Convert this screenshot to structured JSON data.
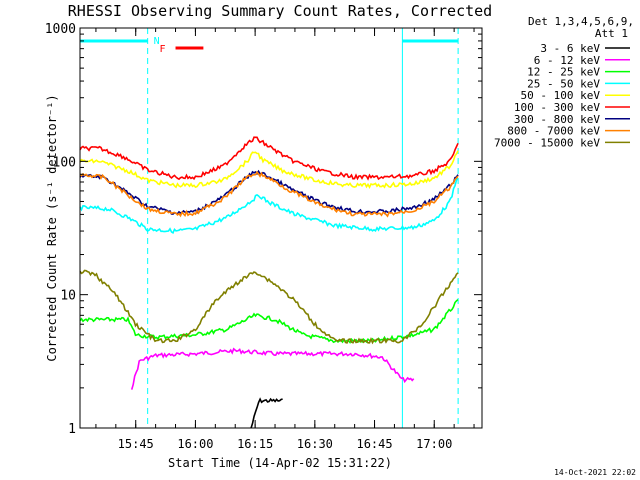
{
  "chart_data": {
    "type": "line",
    "title": "RHESSI Observing Summary Count Rates, Corrected",
    "xlabel": "Start Time (14-Apr-02 15:31:22)",
    "ylabel": "Corrected Count Rate (s⁻¹ detector⁻¹)",
    "ylog": true,
    "ylim": [
      1,
      1000
    ],
    "xlim": [
      "15:31",
      "17:12"
    ],
    "x_ticks": [
      "15:45",
      "16:00",
      "16:15",
      "16:30",
      "16:45",
      "17:00"
    ],
    "y_ticks": [
      "1",
      "10",
      "100",
      "1000"
    ],
    "detectors": "Det 1,3,4,5,6,9,",
    "attenuator": "Att 1",
    "footer_date": "14-Oct-2021 22:02",
    "markers": {
      "night_label": "N",
      "flare_label": "F",
      "vlines": [
        "15:31",
        "15:48",
        "16:52",
        "17:06"
      ],
      "night_bars": [
        [
          "15:31",
          "15:48"
        ],
        [
          "16:52",
          "17:06"
        ]
      ],
      "flare_bar": [
        "15:55",
        "16:02"
      ]
    },
    "series": [
      {
        "name": "3 - 6 keV",
        "color": "#000000",
        "points": [
          [
            "16:14",
            1.0
          ],
          [
            "16:16",
            1.6
          ],
          [
            "16:18",
            1.6
          ],
          [
            "16:20",
            1.6
          ],
          [
            "16:22",
            1.6
          ]
        ]
      },
      {
        "name": "6 - 12 keV",
        "color": "#ff00ff",
        "points": [
          [
            "15:44",
            2.0
          ],
          [
            "15:46",
            3.2
          ],
          [
            "15:50",
            3.5
          ],
          [
            "16:00",
            3.6
          ],
          [
            "16:10",
            3.8
          ],
          [
            "16:20",
            3.6
          ],
          [
            "16:30",
            3.6
          ],
          [
            "16:40",
            3.6
          ],
          [
            "16:47",
            3.4
          ],
          [
            "16:52",
            2.3
          ],
          [
            "16:55",
            2.3
          ]
        ]
      },
      {
        "name": "12 - 25 keV",
        "color": "#00ff00",
        "points": [
          [
            "15:31",
            6.5
          ],
          [
            "15:38",
            6.5
          ],
          [
            "15:43",
            6.5
          ],
          [
            "15:45",
            5.0
          ],
          [
            "15:50",
            4.8
          ],
          [
            "16:00",
            5.0
          ],
          [
            "16:08",
            5.5
          ],
          [
            "16:15",
            7.0
          ],
          [
            "16:20",
            6.5
          ],
          [
            "16:27",
            5.0
          ],
          [
            "16:35",
            4.5
          ],
          [
            "16:45",
            4.5
          ],
          [
            "16:55",
            5.0
          ],
          [
            "17:00",
            5.5
          ],
          [
            "17:06",
            9.0
          ]
        ]
      },
      {
        "name": "25 - 50 keV",
        "color": "#00ffff",
        "points": [
          [
            "15:31",
            45
          ],
          [
            "15:38",
            44
          ],
          [
            "15:43",
            38
          ],
          [
            "15:48",
            31
          ],
          [
            "15:55",
            30
          ],
          [
            "16:00",
            31
          ],
          [
            "16:08",
            38
          ],
          [
            "16:13",
            48
          ],
          [
            "16:16",
            56
          ],
          [
            "16:18",
            50
          ],
          [
            "16:25",
            40
          ],
          [
            "16:35",
            33
          ],
          [
            "16:45",
            31
          ],
          [
            "16:55",
            32
          ],
          [
            "17:00",
            36
          ],
          [
            "17:04",
            50
          ],
          [
            "17:06",
            78
          ]
        ]
      },
      {
        "name": "50 - 100 keV",
        "color": "#ffff00",
        "points": [
          [
            "15:31",
            100
          ],
          [
            "15:36",
            100
          ],
          [
            "15:43",
            85
          ],
          [
            "15:48",
            72
          ],
          [
            "15:55",
            66
          ],
          [
            "16:00",
            66
          ],
          [
            "16:07",
            72
          ],
          [
            "16:13",
            100
          ],
          [
            "16:15",
            120
          ],
          [
            "16:17",
            102
          ],
          [
            "16:22",
            85
          ],
          [
            "16:30",
            72
          ],
          [
            "16:38",
            66
          ],
          [
            "16:48",
            66
          ],
          [
            "16:55",
            68
          ],
          [
            "17:00",
            75
          ],
          [
            "17:04",
            92
          ],
          [
            "17:06",
            118
          ]
        ]
      },
      {
        "name": "100 - 300 keV",
        "color": "#ff0000",
        "points": [
          [
            "15:31",
            125
          ],
          [
            "15:36",
            125
          ],
          [
            "15:42",
            108
          ],
          [
            "15:48",
            86
          ],
          [
            "15:55",
            76
          ],
          [
            "16:00",
            76
          ],
          [
            "16:07",
            92
          ],
          [
            "16:12",
            128
          ],
          [
            "16:15",
            150
          ],
          [
            "16:18",
            132
          ],
          [
            "16:24",
            102
          ],
          [
            "16:32",
            84
          ],
          [
            "16:40",
            76
          ],
          [
            "16:48",
            76
          ],
          [
            "16:55",
            78
          ],
          [
            "17:00",
            85
          ],
          [
            "17:04",
            100
          ],
          [
            "17:06",
            135
          ]
        ]
      },
      {
        "name": "300 - 800 keV",
        "color": "#000080",
        "points": [
          [
            "15:31",
            78
          ],
          [
            "15:37",
            76
          ],
          [
            "15:43",
            58
          ],
          [
            "15:48",
            46
          ],
          [
            "15:55",
            41
          ],
          [
            "16:00",
            42
          ],
          [
            "16:07",
            54
          ],
          [
            "16:12",
            72
          ],
          [
            "16:15",
            84
          ],
          [
            "16:18",
            78
          ],
          [
            "16:24",
            62
          ],
          [
            "16:32",
            48
          ],
          [
            "16:40",
            42
          ],
          [
            "16:48",
            42
          ],
          [
            "16:55",
            45
          ],
          [
            "17:00",
            52
          ],
          [
            "17:04",
            66
          ],
          [
            "17:06",
            78
          ]
        ]
      },
      {
        "name": "800 - 7000 keV",
        "color": "#ff8000",
        "points": [
          [
            "15:31",
            80
          ],
          [
            "15:37",
            76
          ],
          [
            "15:43",
            56
          ],
          [
            "15:48",
            44
          ],
          [
            "15:55",
            40
          ],
          [
            "16:00",
            41
          ],
          [
            "16:07",
            52
          ],
          [
            "16:12",
            72
          ],
          [
            "16:15",
            82
          ],
          [
            "16:18",
            76
          ],
          [
            "16:24",
            60
          ],
          [
            "16:32",
            46
          ],
          [
            "16:40",
            40
          ],
          [
            "16:48",
            40
          ],
          [
            "16:55",
            43
          ],
          [
            "17:00",
            50
          ],
          [
            "17:04",
            64
          ],
          [
            "17:06",
            76
          ]
        ]
      },
      {
        "name": "7000 - 15000 keV",
        "color": "#808000",
        "points": [
          [
            "15:31",
            15
          ],
          [
            "15:35",
            14
          ],
          [
            "15:40",
            10
          ],
          [
            "15:45",
            6
          ],
          [
            "15:50",
            4.5
          ],
          [
            "15:55",
            4.5
          ],
          [
            "16:00",
            5.5
          ],
          [
            "16:05",
            9
          ],
          [
            "16:10",
            12
          ],
          [
            "16:15",
            15
          ],
          [
            "16:20",
            12
          ],
          [
            "16:25",
            9
          ],
          [
            "16:30",
            6
          ],
          [
            "16:35",
            4.5
          ],
          [
            "16:45",
            4.5
          ],
          [
            "16:52",
            4.5
          ],
          [
            "16:57",
            6
          ],
          [
            "17:01",
            9
          ],
          [
            "17:04",
            12
          ],
          [
            "17:06",
            15
          ]
        ]
      }
    ]
  }
}
